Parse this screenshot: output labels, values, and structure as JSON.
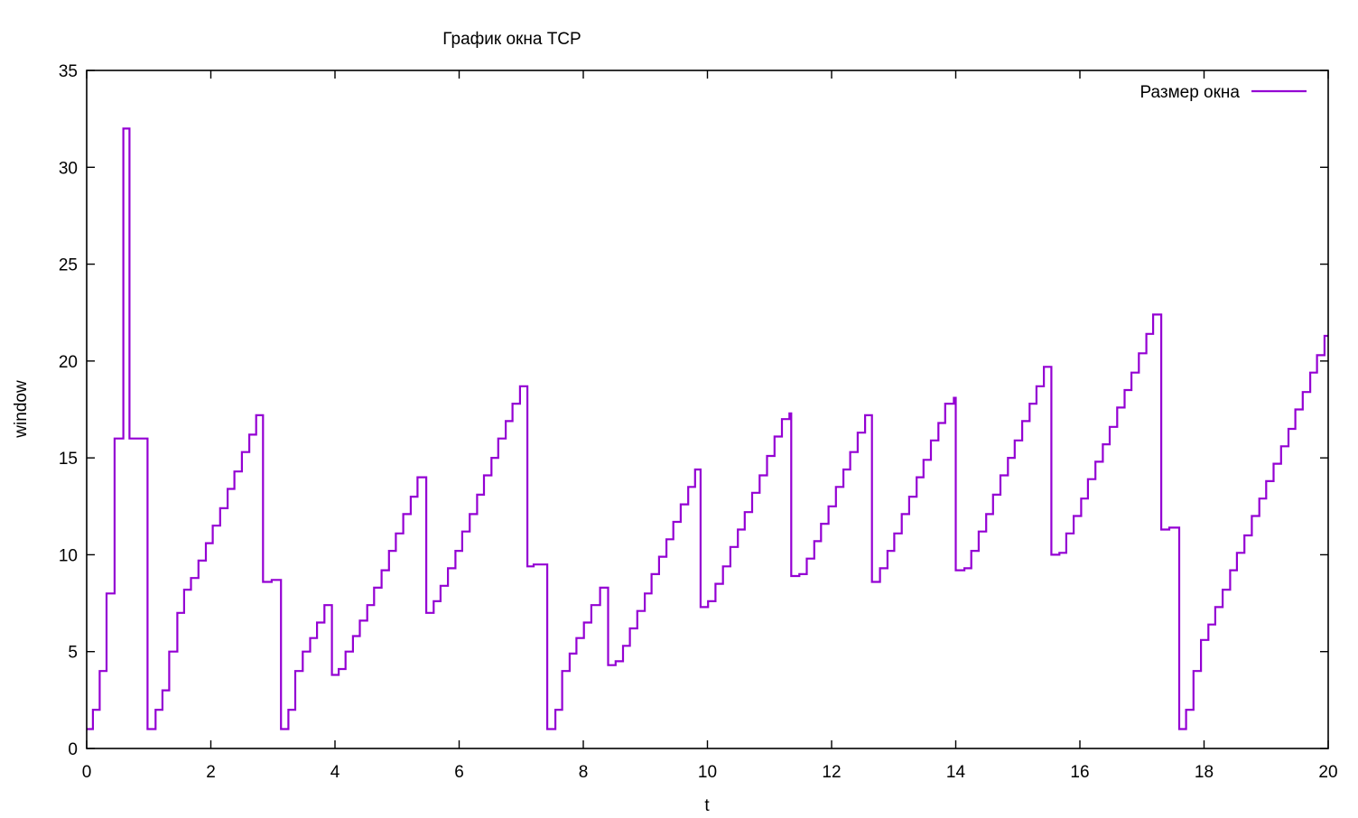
{
  "chart_data": {
    "type": "line",
    "title": "График окна TCP",
    "xlabel": "t",
    "ylabel": "window",
    "xlim": [
      0,
      20
    ],
    "ylim": [
      0,
      35
    ],
    "x_ticks": [
      0,
      2,
      4,
      6,
      8,
      10,
      12,
      14,
      16,
      18,
      20
    ],
    "y_ticks": [
      0,
      5,
      10,
      15,
      20,
      25,
      30,
      35
    ],
    "legend_position": "top-right",
    "grid": false,
    "series": [
      {
        "name": "Размер окна",
        "color": "#9400d3",
        "step": true,
        "points": [
          [
            0,
            1
          ],
          [
            0.1,
            2
          ],
          [
            0.21,
            4
          ],
          [
            0.32,
            8
          ],
          [
            0.45,
            16
          ],
          [
            0.59,
            32
          ],
          [
            0.69,
            16
          ],
          [
            0.98,
            1
          ],
          [
            1.11,
            2
          ],
          [
            1.22,
            3
          ],
          [
            1.33,
            5
          ],
          [
            1.46,
            7
          ],
          [
            1.57,
            8.2
          ],
          [
            1.68,
            8.8
          ],
          [
            1.8,
            9.7
          ],
          [
            1.92,
            10.6
          ],
          [
            2.03,
            11.5
          ],
          [
            2.15,
            12.4
          ],
          [
            2.27,
            13.4
          ],
          [
            2.38,
            14.3
          ],
          [
            2.5,
            15.3
          ],
          [
            2.62,
            16.2
          ],
          [
            2.73,
            17.2
          ],
          [
            2.84,
            8.6
          ],
          [
            2.98,
            8.7
          ],
          [
            3.13,
            1
          ],
          [
            3.25,
            2
          ],
          [
            3.36,
            4
          ],
          [
            3.48,
            5
          ],
          [
            3.6,
            5.7
          ],
          [
            3.71,
            6.5
          ],
          [
            3.83,
            7.4
          ],
          [
            3.95,
            3.8
          ],
          [
            4.06,
            4.1
          ],
          [
            4.17,
            5
          ],
          [
            4.29,
            5.8
          ],
          [
            4.4,
            6.6
          ],
          [
            4.52,
            7.4
          ],
          [
            4.63,
            8.3
          ],
          [
            4.75,
            9.2
          ],
          [
            4.87,
            10.2
          ],
          [
            4.98,
            11.1
          ],
          [
            5.1,
            12.1
          ],
          [
            5.22,
            13
          ],
          [
            5.33,
            14
          ],
          [
            5.47,
            7
          ],
          [
            5.59,
            7.6
          ],
          [
            5.7,
            8.4
          ],
          [
            5.82,
            9.3
          ],
          [
            5.94,
            10.2
          ],
          [
            6.05,
            11.2
          ],
          [
            6.17,
            12.1
          ],
          [
            6.29,
            13.1
          ],
          [
            6.4,
            14.1
          ],
          [
            6.52,
            15
          ],
          [
            6.63,
            16
          ],
          [
            6.75,
            16.9
          ],
          [
            6.86,
            17.8
          ],
          [
            6.98,
            18.7
          ],
          [
            7.1,
            9.4
          ],
          [
            7.2,
            9.5
          ],
          [
            7.42,
            1
          ],
          [
            7.55,
            2
          ],
          [
            7.66,
            4
          ],
          [
            7.78,
            4.9
          ],
          [
            7.89,
            5.7
          ],
          [
            8.01,
            6.5
          ],
          [
            8.13,
            7.4
          ],
          [
            8.27,
            8.3
          ],
          [
            8.4,
            4.3
          ],
          [
            8.52,
            4.5
          ],
          [
            8.64,
            5.3
          ],
          [
            8.75,
            6.2
          ],
          [
            8.87,
            7.1
          ],
          [
            8.99,
            8
          ],
          [
            9.1,
            9
          ],
          [
            9.22,
            9.9
          ],
          [
            9.34,
            10.8
          ],
          [
            9.45,
            11.7
          ],
          [
            9.57,
            12.6
          ],
          [
            9.69,
            13.5
          ],
          [
            9.8,
            14.4
          ],
          [
            9.89,
            7.3
          ],
          [
            10.01,
            7.6
          ],
          [
            10.13,
            8.5
          ],
          [
            10.25,
            9.4
          ],
          [
            10.37,
            10.4
          ],
          [
            10.49,
            11.3
          ],
          [
            10.6,
            12.2
          ],
          [
            10.72,
            13.2
          ],
          [
            10.84,
            14.1
          ],
          [
            10.96,
            15.1
          ],
          [
            11.08,
            16.1
          ],
          [
            11.2,
            17
          ],
          [
            11.32,
            17.3
          ],
          [
            11.35,
            8.9
          ],
          [
            11.48,
            9
          ],
          [
            11.6,
            9.8
          ],
          [
            11.72,
            10.7
          ],
          [
            11.83,
            11.6
          ],
          [
            11.95,
            12.5
          ],
          [
            12.07,
            13.5
          ],
          [
            12.19,
            14.4
          ],
          [
            12.3,
            15.3
          ],
          [
            12.42,
            16.3
          ],
          [
            12.54,
            17.2
          ],
          [
            12.65,
            8.6
          ],
          [
            12.78,
            9.3
          ],
          [
            12.9,
            10.2
          ],
          [
            13.01,
            11.1
          ],
          [
            13.13,
            12.1
          ],
          [
            13.25,
            13
          ],
          [
            13.37,
            14
          ],
          [
            13.48,
            14.9
          ],
          [
            13.6,
            15.9
          ],
          [
            13.72,
            16.8
          ],
          [
            13.83,
            17.8
          ],
          [
            13.97,
            18.1
          ],
          [
            14.0,
            9.2
          ],
          [
            14.14,
            9.3
          ],
          [
            14.25,
            10.2
          ],
          [
            14.37,
            11.2
          ],
          [
            14.49,
            12.1
          ],
          [
            14.6,
            13.1
          ],
          [
            14.72,
            14.1
          ],
          [
            14.84,
            15
          ],
          [
            14.95,
            15.9
          ],
          [
            15.07,
            16.9
          ],
          [
            15.19,
            17.8
          ],
          [
            15.3,
            18.7
          ],
          [
            15.42,
            19.7
          ],
          [
            15.54,
            10
          ],
          [
            15.67,
            10.1
          ],
          [
            15.78,
            11.1
          ],
          [
            15.9,
            12
          ],
          [
            16.02,
            12.9
          ],
          [
            16.13,
            13.9
          ],
          [
            16.25,
            14.8
          ],
          [
            16.37,
            15.7
          ],
          [
            16.48,
            16.6
          ],
          [
            16.6,
            17.6
          ],
          [
            16.72,
            18.5
          ],
          [
            16.83,
            19.4
          ],
          [
            16.95,
            20.4
          ],
          [
            17.07,
            21.4
          ],
          [
            17.18,
            22.4
          ],
          [
            17.31,
            11.3
          ],
          [
            17.44,
            11.4
          ],
          [
            17.6,
            1
          ],
          [
            17.71,
            2
          ],
          [
            17.83,
            4
          ],
          [
            17.95,
            5.6
          ],
          [
            18.07,
            6.4
          ],
          [
            18.18,
            7.3
          ],
          [
            18.3,
            8.2
          ],
          [
            18.42,
            9.2
          ],
          [
            18.53,
            10.1
          ],
          [
            18.65,
            11
          ],
          [
            18.77,
            12
          ],
          [
            18.89,
            12.9
          ],
          [
            19.0,
            13.8
          ],
          [
            19.12,
            14.7
          ],
          [
            19.24,
            15.6
          ],
          [
            19.36,
            16.5
          ],
          [
            19.47,
            17.5
          ],
          [
            19.59,
            18.4
          ],
          [
            19.71,
            19.4
          ],
          [
            19.82,
            20.3
          ],
          [
            19.94,
            21.3
          ],
          [
            20,
            21.3
          ]
        ]
      }
    ]
  }
}
